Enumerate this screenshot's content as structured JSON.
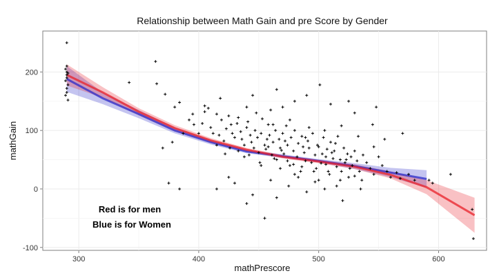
{
  "chart_data": {
    "type": "scatter",
    "title": "Relationship between Math Gain and pre Score by Gender",
    "xlabel": "mathPrescore",
    "ylabel": "mathGain",
    "xlim": [
      270,
      640
    ],
    "ylim": [
      -105,
      270
    ],
    "x_ticks": [
      300,
      400,
      500,
      600
    ],
    "y_ticks": [
      -100,
      0,
      100,
      200
    ],
    "grid": true,
    "legend": "none",
    "annotations": [
      "Red is for men",
      "Blue is for Women"
    ],
    "colors": {
      "men": "#e8202a",
      "women": "#2a2ac8",
      "points": "#000000",
      "panel_border": "#7f7f7f",
      "grid": "#ebebeb"
    },
    "series": [
      {
        "label_ref": "annotations.0",
        "color": "#e8202a",
        "fit_x": [
          290,
          320,
          350,
          380,
          410,
          440,
          470,
          500,
          530,
          560,
          590,
          630
        ],
        "fit_y": [
          195,
          165,
          132,
          104,
          83,
          67,
          55,
          47,
          38,
          24,
          3,
          -45
        ],
        "band_halfwidth": [
          18,
          9,
          6,
          5,
          4,
          3,
          3,
          3,
          4,
          6,
          12,
          30
        ]
      },
      {
        "label_ref": "annotations.1",
        "color": "#2a2ac8",
        "fit_x": [
          290,
          320,
          350,
          380,
          410,
          440,
          470,
          500,
          530,
          560,
          590
        ],
        "fit_y": [
          188,
          155,
          128,
          100,
          80,
          64,
          56,
          48,
          39,
          28,
          17
        ],
        "band_halfwidth": [
          22,
          10,
          7,
          5,
          4,
          3,
          3,
          3,
          5,
          8,
          15
        ]
      }
    ],
    "points": [
      [
        290,
        250
      ],
      [
        290,
        210
      ],
      [
        289,
        205
      ],
      [
        290,
        200
      ],
      [
        291,
        198
      ],
      [
        290,
        195
      ],
      [
        290,
        190
      ],
      [
        289,
        185
      ],
      [
        291,
        178
      ],
      [
        290,
        172
      ],
      [
        290,
        165
      ],
      [
        289,
        160
      ],
      [
        291,
        152
      ],
      [
        342,
        182
      ],
      [
        364,
        218
      ],
      [
        372,
        162
      ],
      [
        380,
        140
      ],
      [
        384,
        148
      ],
      [
        392,
        118
      ],
      [
        395,
        128
      ],
      [
        400,
        95
      ],
      [
        403,
        112
      ],
      [
        405,
        142
      ],
      [
        408,
        138
      ],
      [
        410,
        105
      ],
      [
        412,
        95
      ],
      [
        415,
        128
      ],
      [
        417,
        92
      ],
      [
        419,
        118
      ],
      [
        421,
        82
      ],
      [
        423,
        103
      ],
      [
        425,
        125
      ],
      [
        427,
        110
      ],
      [
        428,
        95
      ],
      [
        430,
        88
      ],
      [
        432,
        112
      ],
      [
        433,
        122
      ],
      [
        435,
        98
      ],
      [
        436,
        85
      ],
      [
        438,
        75
      ],
      [
        440,
        105
      ],
      [
        441,
        115
      ],
      [
        443,
        92
      ],
      [
        444,
        80
      ],
      [
        446,
        70
      ],
      [
        447,
        100
      ],
      [
        449,
        88
      ],
      [
        450,
        62
      ],
      [
        452,
        95
      ],
      [
        453,
        120
      ],
      [
        455,
        75
      ],
      [
        456,
        68
      ],
      [
        458,
        110
      ],
      [
        459,
        92
      ],
      [
        461,
        58
      ],
      [
        462,
        80
      ],
      [
        464,
        100
      ],
      [
        465,
        50
      ],
      [
        467,
        85
      ],
      [
        468,
        70
      ],
      [
        470,
        95
      ],
      [
        471,
        60
      ],
      [
        473,
        108
      ],
      [
        474,
        75
      ],
      [
        476,
        40
      ],
      [
        477,
        88
      ],
      [
        479,
        65
      ],
      [
        480,
        100
      ],
      [
        482,
        55
      ],
      [
        483,
        78
      ],
      [
        485,
        30
      ],
      [
        486,
        90
      ],
      [
        488,
        62
      ],
      [
        489,
        48
      ],
      [
        491,
        82
      ],
      [
        492,
        70
      ],
      [
        494,
        45
      ],
      [
        495,
        95
      ],
      [
        497,
        58
      ],
      [
        498,
        35
      ],
      [
        500,
        72
      ],
      [
        501,
        178
      ],
      [
        503,
        60
      ],
      [
        504,
        88
      ],
      [
        506,
        42
      ],
      [
        507,
        68
      ],
      [
        509,
        25
      ],
      [
        510,
        80
      ],
      [
        512,
        52
      ],
      [
        513,
        65
      ],
      [
        515,
        38
      ],
      [
        516,
        90
      ],
      [
        518,
        50
      ],
      [
        519,
        30
      ],
      [
        521,
        70
      ],
      [
        522,
        45
      ],
      [
        524,
        60
      ],
      [
        525,
        20
      ],
      [
        527,
        55
      ],
      [
        528,
        40
      ],
      [
        530,
        65
      ],
      [
        532,
        48
      ],
      [
        534,
        30
      ],
      [
        536,
        15
      ],
      [
        540,
        45
      ],
      [
        543,
        35
      ],
      [
        546,
        25
      ],
      [
        550,
        55
      ],
      [
        553,
        40
      ],
      [
        557,
        30
      ],
      [
        560,
        20
      ],
      [
        565,
        28
      ],
      [
        568,
        18
      ],
      [
        575,
        25
      ],
      [
        580,
        15
      ],
      [
        592,
        15
      ],
      [
        595,
        10
      ],
      [
        610,
        25
      ],
      [
        628,
        -35
      ],
      [
        629,
        -85
      ],
      [
        415,
        0
      ],
      [
        430,
        10
      ],
      [
        445,
        -10
      ],
      [
        455,
        -50
      ],
      [
        465,
        -15
      ],
      [
        475,
        5
      ],
      [
        490,
        -5
      ],
      [
        505,
        0
      ],
      [
        520,
        -20
      ],
      [
        440,
        -25
      ],
      [
        425,
        20
      ],
      [
        460,
        15
      ],
      [
        480,
        25
      ],
      [
        500,
        15
      ],
      [
        515,
        5
      ],
      [
        535,
        0
      ],
      [
        548,
        140
      ],
      [
        555,
        85
      ],
      [
        570,
        95
      ],
      [
        545,
        110
      ],
      [
        525,
        150
      ],
      [
        530,
        130
      ],
      [
        480,
        150
      ],
      [
        470,
        140
      ],
      [
        460,
        135
      ],
      [
        440,
        140
      ],
      [
        405,
        132
      ],
      [
        396,
        110
      ],
      [
        387,
        95
      ],
      [
        378,
        80
      ],
      [
        370,
        70
      ],
      [
        375,
        10
      ],
      [
        384,
        0
      ],
      [
        365,
        180
      ],
      [
        418,
        155
      ],
      [
        445,
        160
      ],
      [
        465,
        170
      ],
      [
        490,
        160
      ],
      [
        510,
        145
      ],
      [
        415,
        75
      ],
      [
        422,
        60
      ],
      [
        438,
        55
      ],
      [
        452,
        40
      ],
      [
        468,
        35
      ],
      [
        483,
        20
      ],
      [
        497,
        12
      ],
      [
        508,
        30
      ],
      [
        518,
        15
      ],
      [
        530,
        22
      ],
      [
        451,
        45
      ],
      [
        463,
        52
      ],
      [
        474,
        48
      ],
      [
        486,
        38
      ],
      [
        496,
        30
      ],
      [
        506,
        55
      ],
      [
        426,
        70
      ],
      [
        433,
        65
      ],
      [
        442,
        58
      ],
      [
        457,
        85
      ],
      [
        469,
        66
      ],
      [
        479,
        42
      ],
      [
        489,
        88
      ],
      [
        499,
        75
      ],
      [
        511,
        62
      ],
      [
        523,
        50
      ],
      [
        458,
        72
      ],
      [
        472,
        82
      ],
      [
        487,
        72
      ],
      [
        502,
        44
      ],
      [
        514,
        78
      ],
      [
        526,
        35
      ],
      [
        537,
        58
      ],
      [
        448,
        130
      ],
      [
        462,
        110
      ],
      [
        476,
        118
      ],
      [
        492,
        105
      ],
      [
        505,
        100
      ],
      [
        519,
        108
      ],
      [
        533,
        90
      ],
      [
        546,
        72
      ]
    ]
  }
}
